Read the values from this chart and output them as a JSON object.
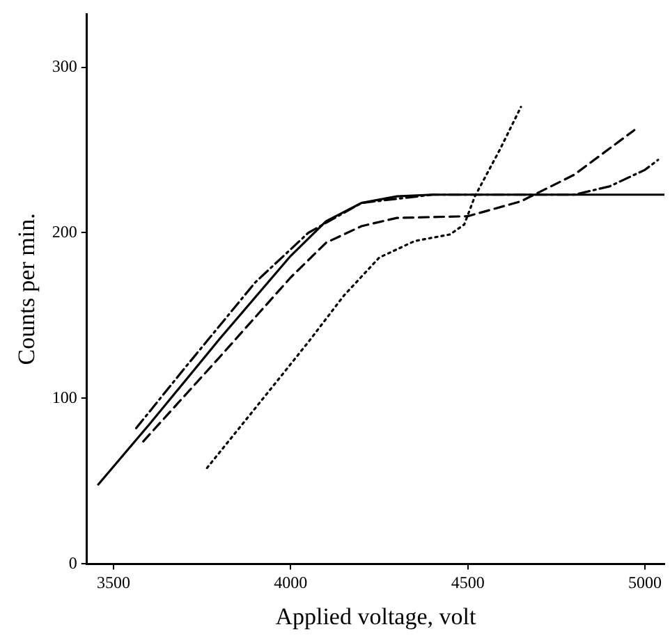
{
  "chart_data": {
    "type": "line",
    "xlabel": "Applied voltage, volt",
    "ylabel": "Counts per min.",
    "xlim": [
      3425,
      5055
    ],
    "xticks": [
      3500,
      4000,
      4500,
      5000
    ],
    "ylim": [
      0,
      332
    ],
    "yticks": [
      0,
      100,
      200,
      300
    ],
    "grid": false,
    "legend": false,
    "marker": "none",
    "series": [
      {
        "color": "#000000",
        "line_style": "solid",
        "x": [
          3457,
          3600,
          3800,
          4000,
          4100,
          4200,
          4300,
          4400,
          5055
        ],
        "values": [
          48,
          84,
          136,
          186,
          207,
          218,
          222,
          223,
          223
        ]
      },
      {
        "color": "#000000",
        "line_style": "dashdot",
        "x": [
          3564,
          3700,
          3900,
          4050,
          4200,
          4400,
          4800,
          4900,
          5000,
          5037
        ],
        "values": [
          82,
          118,
          170,
          200,
          218,
          223,
          223,
          228,
          238,
          244
        ]
      },
      {
        "color": "#000000",
        "line_style": "dashed",
        "x": [
          3584,
          3800,
          4000,
          4100,
          4200,
          4300,
          4500,
          4650,
          4800,
          4970
        ],
        "values": [
          74,
          125,
          173,
          194,
          204,
          209,
          210,
          219,
          235,
          262
        ]
      },
      {
        "color": "#000000",
        "line_style": "dotted",
        "x": [
          3764,
          3900,
          4050,
          4150,
          4250,
          4350,
          4450,
          4490,
          4520,
          4590,
          4650
        ],
        "values": [
          58,
          94,
          134,
          162,
          185,
          195,
          199,
          205,
          222,
          250,
          276
        ]
      }
    ]
  }
}
